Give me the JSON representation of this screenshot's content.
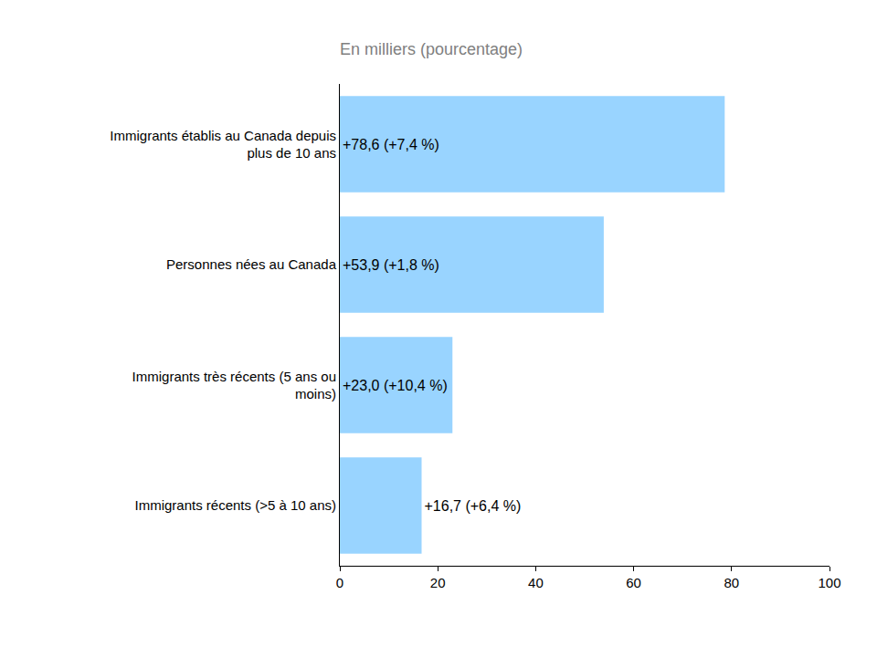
{
  "chart_data": {
    "type": "bar",
    "orientation": "horizontal",
    "title": "En milliers (pourcentage)",
    "categories": [
      "Immigrants établis au Canada depuis plus de 10 ans",
      "Personnes nées au Canada",
      "Immigrants très récents (5 ans ou moins)",
      "Immigrants récents (>5 à 10 ans)"
    ],
    "values": [
      78.6,
      53.9,
      23.0,
      16.7
    ],
    "value_labels": [
      "+78,6 (+7,4 %)",
      "+53,9 (+1,8 %)",
      "+23,0 (+10,4 %)",
      "+16,7 (+6,4 %)"
    ],
    "data_labels": true,
    "color": "#99d4ff",
    "xlim": [
      0,
      100
    ],
    "xticks": [
      0,
      20,
      40,
      60,
      80,
      100
    ],
    "grid": false
  }
}
